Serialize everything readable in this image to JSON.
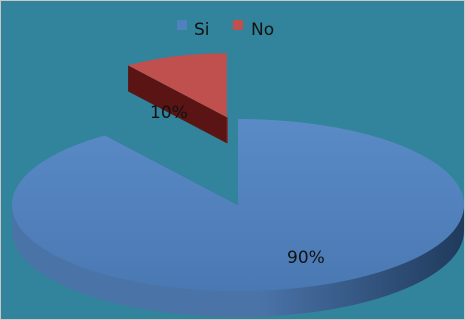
{
  "chart_data": {
    "type": "pie",
    "variant": "3d-exploded",
    "categories": [
      "Si",
      "No"
    ],
    "values": [
      90,
      10
    ],
    "data_labels": [
      "90%",
      "10%"
    ],
    "legend_position": "top",
    "background_color": "#31849B",
    "colors": {
      "Si": {
        "top": "#4F81BD",
        "side_light": "#4A73A8",
        "side_dark": "#1F3A5C"
      },
      "No": {
        "top": "#C0504D",
        "side_light": "#8C2B28",
        "side_dark": "#5A1413"
      }
    }
  }
}
